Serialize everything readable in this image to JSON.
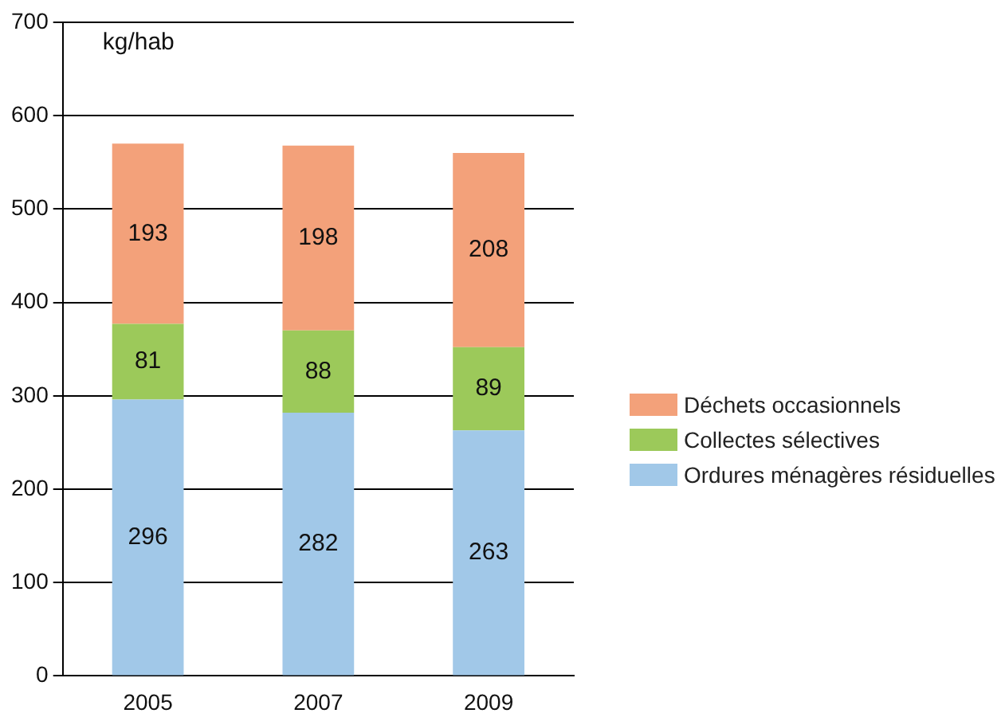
{
  "chart_data": {
    "type": "bar",
    "ylabel": "kg/hab",
    "categories": [
      "2005",
      "2007",
      "2009"
    ],
    "stacked": true,
    "series": [
      {
        "name": "Ordures ménagères résiduelles",
        "color": "#a1c8e8",
        "values": [
          296,
          282,
          263
        ]
      },
      {
        "name": "Collectes sélectives",
        "color": "#9cc95a",
        "values": [
          81,
          88,
          89
        ]
      },
      {
        "name": "Déchets occasionnels",
        "color": "#f3a17a",
        "values": [
          193,
          198,
          208
        ]
      }
    ],
    "ylim": [
      0,
      700
    ],
    "yticks": [
      0,
      100,
      200,
      300,
      400,
      500,
      600,
      700
    ],
    "grid": "y",
    "legend": "right",
    "data_labels": true
  }
}
